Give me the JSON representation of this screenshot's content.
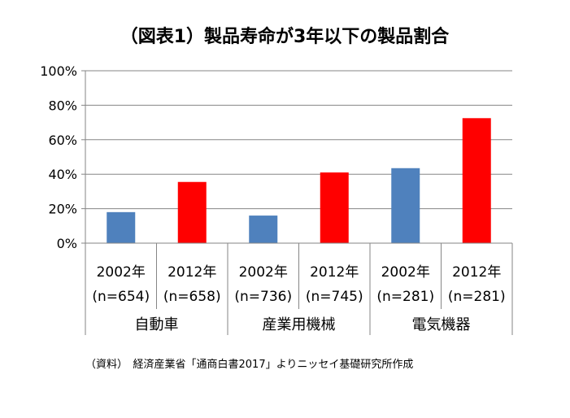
{
  "chart_data": {
    "type": "bar",
    "title": "（図表1）製品寿命が3年以下の製品割合",
    "y_ticks": [
      "0%",
      "20%",
      "40%",
      "60%",
      "80%",
      "100%"
    ],
    "ylim": [
      0,
      100
    ],
    "grid": true,
    "legend": "none",
    "categories": [
      {
        "year": "2002年",
        "n": "(n=654)",
        "group": "自動車",
        "value": 18,
        "color": "#4f81bd"
      },
      {
        "year": "2012年",
        "n": "(n=658)",
        "group": "自動車",
        "value": 35.5,
        "color": "#ff0000"
      },
      {
        "year": "2002年",
        "n": "(n=736)",
        "group": "産業用機械",
        "value": 16,
        "color": "#4f81bd"
      },
      {
        "year": "2012年",
        "n": "(n=745)",
        "group": "産業用機械",
        "value": 41,
        "color": "#ff0000"
      },
      {
        "year": "2002年",
        "n": "(n=281)",
        "group": "電気機器",
        "value": 43.5,
        "color": "#4f81bd"
      },
      {
        "year": "2012年",
        "n": "(n=281)",
        "group": "電気機器",
        "value": 72.5,
        "color": "#ff0000"
      }
    ],
    "groups": [
      "自動車",
      "産業用機械",
      "電気機器"
    ]
  },
  "source_note": "（資料）　経済産業省「通商白書2017」よりニッセイ基礎研究所作成"
}
